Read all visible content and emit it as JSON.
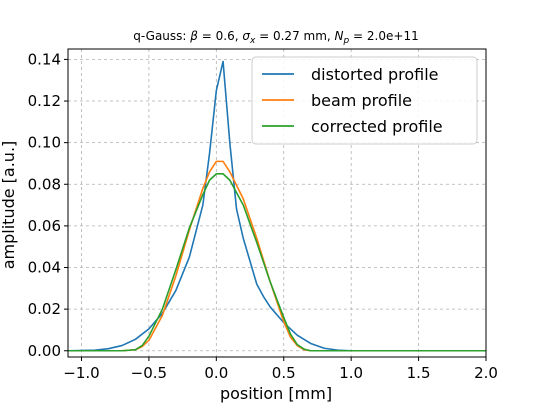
{
  "chart_data": {
    "type": "line",
    "title": "q-Gauss: β = 0.6, σx = 0.27 mm, Np = 2.0e+11",
    "title_parts": {
      "prefix": "q-Gauss: ",
      "beta_symbol": "β",
      "beta_value": " = 0.6, ",
      "sigma_symbol": "σ",
      "sigma_sub": "x",
      "sigma_value": " = 0.27 mm, ",
      "n_symbol": "N",
      "n_sub": "p",
      "n_value": " = 2.0e+11"
    },
    "xlabel": "position [mm]",
    "ylabel": "amplitude [a.u.]",
    "xlim": [
      -1.1,
      2.0
    ],
    "ylim": [
      -0.003,
      0.145
    ],
    "xticks": [
      -1.0,
      -0.5,
      0.0,
      0.5,
      1.0,
      1.5,
      2.0
    ],
    "xtick_labels": [
      "−1.0",
      "−0.5",
      "0.0",
      "0.5",
      "1.0",
      "1.5",
      "2.0"
    ],
    "yticks": [
      0.0,
      0.02,
      0.04,
      0.06,
      0.08,
      0.1,
      0.12,
      0.14
    ],
    "ytick_labels": [
      "0.00",
      "0.02",
      "0.04",
      "0.06",
      "0.08",
      "0.10",
      "0.12",
      "0.14"
    ],
    "grid": true,
    "legend_position": "top-right",
    "series": [
      {
        "name": "distorted profile",
        "color": "#1f77b4",
        "x": [
          -1.1,
          -0.9,
          -0.8,
          -0.7,
          -0.6,
          -0.5,
          -0.4,
          -0.3,
          -0.2,
          -0.1,
          -0.05,
          0.0,
          0.05,
          0.1,
          0.15,
          0.2,
          0.25,
          0.3,
          0.35,
          0.4,
          0.5,
          0.6,
          0.7,
          0.8,
          0.9,
          1.0,
          1.2,
          1.5,
          2.0
        ],
        "y": [
          0.0,
          0.0003,
          0.001,
          0.0025,
          0.0055,
          0.0105,
          0.018,
          0.029,
          0.045,
          0.07,
          0.095,
          0.125,
          0.139,
          0.1,
          0.068,
          0.054,
          0.043,
          0.032,
          0.026,
          0.021,
          0.0135,
          0.0075,
          0.0035,
          0.0012,
          0.0003,
          0.0,
          0.0,
          0.0,
          0.0
        ]
      },
      {
        "name": "beam profile",
        "color": "#ff7f0e",
        "x": [
          -1.1,
          -0.7,
          -0.6,
          -0.55,
          -0.5,
          -0.4,
          -0.3,
          -0.2,
          -0.1,
          -0.05,
          0.0,
          0.05,
          0.1,
          0.2,
          0.3,
          0.4,
          0.5,
          0.55,
          0.6,
          0.65,
          0.7,
          1.0,
          1.5,
          2.0
        ],
        "y": [
          0.0,
          0.0,
          0.0005,
          0.002,
          0.005,
          0.017,
          0.036,
          0.058,
          0.078,
          0.086,
          0.091,
          0.091,
          0.086,
          0.073,
          0.054,
          0.033,
          0.014,
          0.0065,
          0.0025,
          0.0005,
          0.0,
          0.0,
          0.0,
          0.0
        ]
      },
      {
        "name": "corrected profile",
        "color": "#2ca02c",
        "x": [
          -1.1,
          -0.7,
          -0.6,
          -0.55,
          -0.5,
          -0.4,
          -0.3,
          -0.2,
          -0.1,
          -0.05,
          0.0,
          0.05,
          0.1,
          0.2,
          0.3,
          0.4,
          0.5,
          0.55,
          0.6,
          0.65,
          0.7,
          1.0,
          1.5,
          2.0
        ],
        "y": [
          0.0,
          0.0,
          0.0005,
          0.0025,
          0.007,
          0.02,
          0.039,
          0.059,
          0.075,
          0.082,
          0.085,
          0.085,
          0.082,
          0.07,
          0.052,
          0.033,
          0.016,
          0.008,
          0.003,
          0.0008,
          0.0,
          0.0,
          0.0,
          0.0
        ]
      }
    ]
  }
}
